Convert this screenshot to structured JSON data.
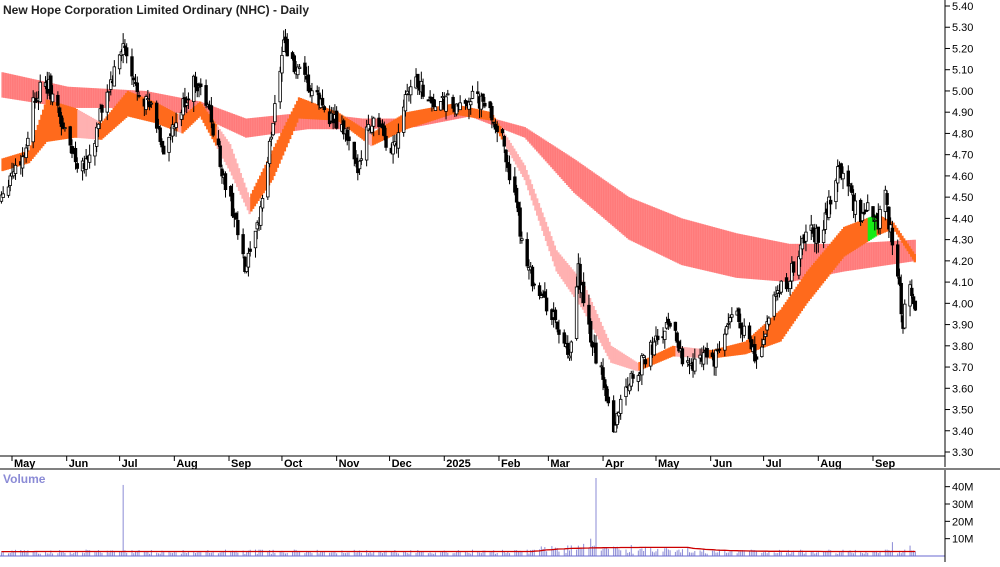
{
  "chart_data": {
    "type": "candlestick",
    "title": "New Hope Corporation Limited Ordinary (NHC) - Daily",
    "volume_label": "Volume",
    "price_axis": {
      "ticks": [
        "5.40",
        "5.30",
        "5.20",
        "5.10",
        "5.00",
        "4.90",
        "4.80",
        "4.70",
        "4.60",
        "4.50",
        "4.40",
        "4.30",
        "4.20",
        "4.10",
        "4.00",
        "3.90",
        "3.80",
        "3.70",
        "3.60",
        "3.50",
        "3.40",
        "3.30"
      ],
      "ylim": [
        3.25,
        5.42
      ]
    },
    "volume_axis": {
      "ticks": [
        "40M",
        "30M",
        "20M",
        "10M"
      ],
      "ylim": [
        0,
        48
      ]
    },
    "x_axis": {
      "ticks": [
        "May",
        "Jun",
        "Jul",
        "Aug",
        "Sep",
        "Oct",
        "Nov",
        "Dec",
        "2025",
        "Feb",
        "Mar",
        "Apr",
        "May",
        "Jun",
        "Jul",
        "Aug",
        "Sep"
      ],
      "tick_days": [
        0,
        31,
        61,
        92,
        123,
        153,
        184,
        214,
        245,
        276,
        304,
        335,
        365,
        396,
        426,
        457,
        488
      ],
      "start": "2024-05-01",
      "end": "2025-09-25"
    },
    "price_anchors": [
      [
        "2024-04-24",
        4.5
      ],
      [
        "2024-05-01",
        4.62
      ],
      [
        "2024-05-08",
        4.7
      ],
      [
        "2024-05-13",
        4.95
      ],
      [
        "2024-05-16",
        5.0
      ],
      [
        "2024-05-22",
        5.02
      ],
      [
        "2024-05-28",
        4.88
      ],
      [
        "2024-06-01",
        4.78
      ],
      [
        "2024-06-08",
        4.65
      ],
      [
        "2024-06-15",
        4.7
      ],
      [
        "2024-06-22",
        4.95
      ],
      [
        "2024-06-29",
        5.1
      ],
      [
        "2024-07-03",
        5.22
      ],
      [
        "2024-07-08",
        5.05
      ],
      [
        "2024-07-14",
        4.98
      ],
      [
        "2024-07-20",
        4.9
      ],
      [
        "2024-07-26",
        4.72
      ],
      [
        "2024-08-01",
        4.82
      ],
      [
        "2024-08-07",
        4.95
      ],
      [
        "2024-08-13",
        5.05
      ],
      [
        "2024-08-19",
        4.95
      ],
      [
        "2024-08-24",
        4.8
      ],
      [
        "2024-08-29",
        4.58
      ],
      [
        "2024-09-04",
        4.42
      ],
      [
        "2024-09-10",
        4.15
      ],
      [
        "2024-09-16",
        4.3
      ],
      [
        "2024-09-22",
        4.6
      ],
      [
        "2024-09-28",
        5.0
      ],
      [
        "2024-10-02",
        5.25
      ],
      [
        "2024-10-07",
        5.12
      ],
      [
        "2024-10-13",
        5.05
      ],
      [
        "2024-10-19",
        4.98
      ],
      [
        "2024-10-25",
        4.92
      ],
      [
        "2024-10-31",
        4.85
      ],
      [
        "2024-11-06",
        4.8
      ],
      [
        "2024-11-12",
        4.62
      ],
      [
        "2024-11-18",
        4.82
      ],
      [
        "2024-11-24",
        4.88
      ],
      [
        "2024-11-30",
        4.7
      ],
      [
        "2024-12-05",
        4.78
      ],
      [
        "2024-12-10",
        5.0
      ],
      [
        "2024-12-16",
        5.05
      ],
      [
        "2024-12-22",
        4.98
      ],
      [
        "2024-12-28",
        4.92
      ],
      [
        "2025-01-03",
        4.95
      ],
      [
        "2025-01-09",
        4.9
      ],
      [
        "2025-01-15",
        4.97
      ],
      [
        "2025-01-21",
        4.95
      ],
      [
        "2025-01-27",
        4.9
      ],
      [
        "2025-02-02",
        4.8
      ],
      [
        "2025-02-08",
        4.58
      ],
      [
        "2025-02-14",
        4.3
      ],
      [
        "2025-02-20",
        4.12
      ],
      [
        "2025-02-26",
        4.02
      ],
      [
        "2025-03-03",
        3.95
      ],
      [
        "2025-03-08",
        3.85
      ],
      [
        "2025-03-13",
        3.72
      ],
      [
        "2025-03-18",
        4.15
      ],
      [
        "2025-03-23",
        3.9
      ],
      [
        "2025-03-28",
        3.75
      ],
      [
        "2025-04-02",
        3.62
      ],
      [
        "2025-04-07",
        3.4
      ],
      [
        "2025-04-12",
        3.58
      ],
      [
        "2025-04-17",
        3.65
      ],
      [
        "2025-04-22",
        3.7
      ],
      [
        "2025-04-28",
        3.78
      ],
      [
        "2025-05-04",
        3.85
      ],
      [
        "2025-05-10",
        3.92
      ],
      [
        "2025-05-16",
        3.75
      ],
      [
        "2025-05-22",
        3.7
      ],
      [
        "2025-05-28",
        3.78
      ],
      [
        "2025-06-03",
        3.72
      ],
      [
        "2025-06-09",
        3.85
      ],
      [
        "2025-06-15",
        3.97
      ],
      [
        "2025-06-21",
        3.85
      ],
      [
        "2025-06-27",
        3.72
      ],
      [
        "2025-07-03",
        3.9
      ],
      [
        "2025-07-09",
        4.05
      ],
      [
        "2025-07-15",
        4.1
      ],
      [
        "2025-07-21",
        4.25
      ],
      [
        "2025-07-27",
        4.35
      ],
      [
        "2025-08-02",
        4.3
      ],
      [
        "2025-08-08",
        4.5
      ],
      [
        "2025-08-13",
        4.65
      ],
      [
        "2025-08-18",
        4.55
      ],
      [
        "2025-08-24",
        4.4
      ],
      [
        "2025-08-30",
        4.45
      ],
      [
        "2025-09-04",
        4.38
      ],
      [
        "2025-09-07",
        4.62
      ],
      [
        "2025-09-10",
        4.38
      ],
      [
        "2025-09-14",
        4.2
      ],
      [
        "2025-09-18",
        3.92
      ],
      [
        "2025-09-22",
        4.1
      ],
      [
        "2025-09-25",
        3.93
      ]
    ],
    "volume_spikes": [
      [
        "2024-07-03",
        41
      ],
      [
        "2025-03-28",
        45
      ],
      [
        "2025-03-25",
        10
      ],
      [
        "2025-03-21",
        7
      ],
      [
        "2025-09-12",
        8
      ],
      [
        "2025-09-22",
        6
      ]
    ],
    "long_band": {
      "top_anchors": [
        [
          "2024-04-24",
          5.09
        ],
        [
          "2024-06-01",
          5.02
        ],
        [
          "2024-07-15",
          5.0
        ],
        [
          "2024-08-15",
          4.95
        ],
        [
          "2024-09-10",
          4.87
        ],
        [
          "2024-10-15",
          4.9
        ],
        [
          "2024-11-15",
          4.87
        ],
        [
          "2024-12-15",
          4.87
        ],
        [
          "2025-01-15",
          4.9
        ],
        [
          "2025-02-15",
          4.83
        ],
        [
          "2025-03-15",
          4.68
        ],
        [
          "2025-04-15",
          4.5
        ],
        [
          "2025-05-15",
          4.4
        ],
        [
          "2025-06-15",
          4.33
        ],
        [
          "2025-07-15",
          4.28
        ],
        [
          "2025-08-15",
          4.28
        ],
        [
          "2025-09-25",
          4.3
        ]
      ],
      "bottom_anchors": [
        [
          "2024-04-24",
          4.97
        ],
        [
          "2024-06-01",
          4.92
        ],
        [
          "2024-07-15",
          4.92
        ],
        [
          "2024-08-15",
          4.88
        ],
        [
          "2024-09-10",
          4.78
        ],
        [
          "2024-10-15",
          4.82
        ],
        [
          "2024-11-15",
          4.82
        ],
        [
          "2024-12-15",
          4.83
        ],
        [
          "2025-01-15",
          4.88
        ],
        [
          "2025-02-15",
          4.78
        ],
        [
          "2025-03-15",
          4.52
        ],
        [
          "2025-04-15",
          4.3
        ],
        [
          "2025-05-15",
          4.18
        ],
        [
          "2025-06-15",
          4.12
        ],
        [
          "2025-07-15",
          4.1
        ],
        [
          "2025-08-15",
          4.15
        ],
        [
          "2025-09-25",
          4.2
        ]
      ],
      "color_light": "#ffb1b1",
      "color_dark": "#ff7070"
    },
    "short_band": {
      "top_anchors": [
        [
          "2024-04-24",
          4.68
        ],
        [
          "2024-05-10",
          4.72
        ],
        [
          "2024-05-20",
          4.96
        ],
        [
          "2024-06-05",
          4.92
        ],
        [
          "2024-06-20",
          4.85
        ],
        [
          "2024-07-05",
          5.0
        ],
        [
          "2024-07-20",
          4.95
        ],
        [
          "2024-08-05",
          4.88
        ],
        [
          "2024-08-15",
          4.95
        ],
        [
          "2024-09-01",
          4.75
        ],
        [
          "2024-09-12",
          4.5
        ],
        [
          "2024-09-25",
          4.72
        ],
        [
          "2024-10-10",
          4.97
        ],
        [
          "2024-11-01",
          4.9
        ],
        [
          "2024-11-20",
          4.8
        ],
        [
          "2024-12-10",
          4.9
        ],
        [
          "2025-01-05",
          4.94
        ],
        [
          "2025-01-27",
          4.9
        ],
        [
          "2025-02-15",
          4.65
        ],
        [
          "2025-03-05",
          4.25
        ],
        [
          "2025-03-20",
          4.1
        ],
        [
          "2025-04-05",
          3.8
        ],
        [
          "2025-04-20",
          3.72
        ],
        [
          "2025-05-10",
          3.8
        ],
        [
          "2025-06-01",
          3.78
        ],
        [
          "2025-06-20",
          3.82
        ],
        [
          "2025-07-10",
          3.97
        ],
        [
          "2025-07-25",
          4.15
        ],
        [
          "2025-08-15",
          4.36
        ],
        [
          "2025-09-03",
          4.42
        ],
        [
          "2025-09-12",
          4.38
        ],
        [
          "2025-09-25",
          4.22
        ]
      ],
      "bottom_anchors": [
        [
          "2024-04-24",
          4.62
        ],
        [
          "2024-05-10",
          4.66
        ],
        [
          "2024-05-20",
          4.76
        ],
        [
          "2024-06-05",
          4.78
        ],
        [
          "2024-06-20",
          4.77
        ],
        [
          "2024-07-05",
          4.88
        ],
        [
          "2024-07-20",
          4.85
        ],
        [
          "2024-08-05",
          4.8
        ],
        [
          "2024-08-15",
          4.88
        ],
        [
          "2024-09-01",
          4.62
        ],
        [
          "2024-09-12",
          4.42
        ],
        [
          "2024-09-25",
          4.58
        ],
        [
          "2024-10-10",
          4.87
        ],
        [
          "2024-11-01",
          4.86
        ],
        [
          "2024-11-20",
          4.74
        ],
        [
          "2024-12-10",
          4.82
        ],
        [
          "2025-01-05",
          4.89
        ],
        [
          "2025-01-27",
          4.86
        ],
        [
          "2025-02-15",
          4.58
        ],
        [
          "2025-03-05",
          4.15
        ],
        [
          "2025-03-20",
          3.97
        ],
        [
          "2025-04-05",
          3.72
        ],
        [
          "2025-04-20",
          3.68
        ],
        [
          "2025-05-10",
          3.75
        ],
        [
          "2025-06-01",
          3.74
        ],
        [
          "2025-06-20",
          3.76
        ],
        [
          "2025-07-10",
          3.82
        ],
        [
          "2025-07-25",
          4.0
        ],
        [
          "2025-08-15",
          4.22
        ],
        [
          "2025-09-03",
          4.32
        ],
        [
          "2025-09-12",
          4.35
        ],
        [
          "2025-09-25",
          4.18
        ]
      ],
      "color_up": "#16ec16",
      "color_down": "#ff6a1c",
      "color_bear": "#ffb1b1"
    },
    "volume_ma_color": "#cc0000",
    "volume_bar_color": "#8b8bd6",
    "grid": false,
    "legend": "none"
  }
}
